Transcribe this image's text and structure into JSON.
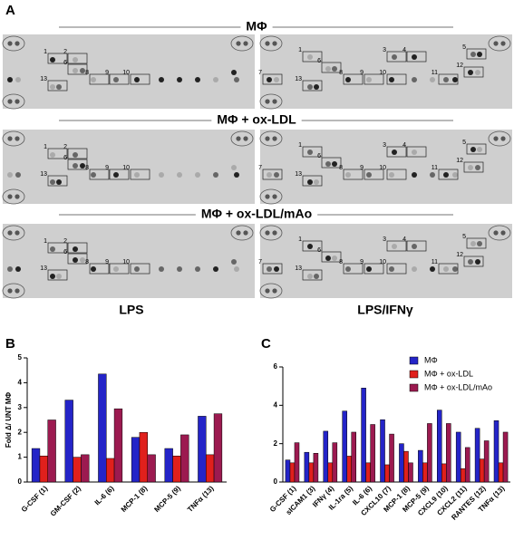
{
  "panel_a": {
    "label": "A",
    "rows": [
      {
        "title": "MΦ",
        "blots": [
          {
            "labels": [
              "1",
              "2",
              "6",
              "13",
              "8",
              "9",
              "10"
            ]
          },
          {
            "labels": [
              "1",
              "6",
              "13",
              "7",
              "3",
              "4",
              "8",
              "9",
              "10",
              "11",
              "12",
              "5"
            ]
          }
        ]
      },
      {
        "title": "MΦ + ox-LDL",
        "blots": [
          {
            "labels": [
              "1",
              "2",
              "6",
              "13",
              "8",
              "9",
              "10"
            ]
          },
          {
            "labels": [
              "1",
              "6",
              "13",
              "7",
              "3",
              "4",
              "8",
              "9",
              "10",
              "11",
              "12",
              "5"
            ]
          }
        ]
      },
      {
        "title": "MΦ + ox-LDL/mAo",
        "blots": [
          {
            "labels": [
              "1",
              "2",
              "6",
              "13",
              "8",
              "9",
              "10"
            ]
          },
          {
            "labels": [
              "1",
              "6",
              "13",
              "7",
              "3",
              "4",
              "8",
              "9",
              "10",
              "11",
              "12",
              "5"
            ]
          }
        ]
      }
    ],
    "columns": [
      "LPS",
      "LPS/IFNγ"
    ]
  },
  "chart_data": [
    {
      "type": "bar",
      "panel_label": "B",
      "ylabel": "Fold Δ/ UNT MΦ",
      "categories": [
        "G-CSF (1)",
        "GM-CSF (2)",
        "IL-6 (6)",
        "MCP-1 (8)",
        "MCP-5 (9)",
        "TNFα (13)"
      ],
      "series": [
        {
          "color": "#2424c8",
          "values": [
            1.35,
            3.3,
            4.35,
            1.8,
            1.35,
            2.65
          ]
        },
        {
          "color": "#e0201c",
          "values": [
            1.05,
            1.0,
            0.95,
            2.0,
            1.05,
            1.1
          ]
        },
        {
          "color": "#9c1a50",
          "values": [
            2.5,
            1.1,
            2.95,
            1.1,
            1.9,
            2.75
          ]
        }
      ],
      "ylim": [
        0,
        5
      ],
      "yticks": [
        0,
        1,
        2,
        3,
        4,
        5
      ]
    },
    {
      "type": "bar",
      "panel_label": "C",
      "categories": [
        "G-CSF (1)",
        "sICAM1 (3)",
        "IFNγ (4)",
        "IL-1ra (5)",
        "IL-6 (6)",
        "CXCL10 (7)",
        "MCP-1 (8)",
        "MCP-5 (9)",
        "CXCL9 (10)",
        "CXCL2 (11)",
        "RANTES (12)",
        "TNFα (13)"
      ],
      "series": [
        {
          "name": "MΦ",
          "color": "#2424c8",
          "values": [
            1.15,
            1.55,
            2.65,
            3.7,
            4.9,
            3.25,
            2.0,
            1.65,
            3.75,
            2.6,
            2.8,
            3.2
          ]
        },
        {
          "name": "MΦ + ox-LDL",
          "color": "#e0201c",
          "values": [
            1.0,
            1.0,
            1.0,
            1.35,
            1.0,
            0.9,
            1.6,
            1.0,
            0.95,
            0.7,
            1.2,
            1.0
          ]
        },
        {
          "name": "MΦ + ox-LDL/mAo",
          "color": "#9c1a50",
          "values": [
            2.05,
            1.5,
            2.05,
            2.6,
            3.0,
            2.5,
            1.0,
            3.05,
            3.05,
            1.8,
            2.15,
            2.6
          ]
        }
      ],
      "ylim": [
        0,
        6
      ],
      "yticks": [
        0,
        2,
        4,
        6
      ],
      "legend": "top-right"
    }
  ]
}
